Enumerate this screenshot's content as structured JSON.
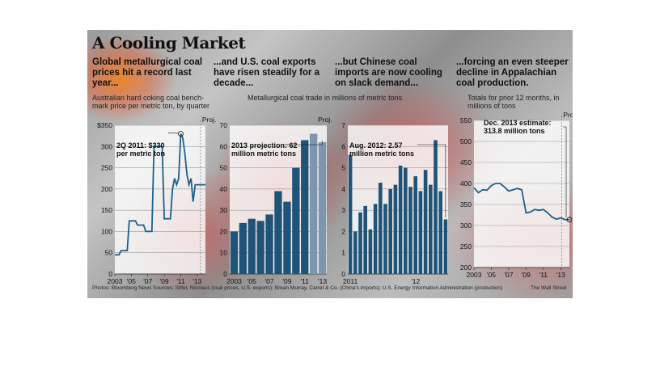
{
  "title": "A Cooling Market",
  "headlines": [
    "Global metallurgical coal prices hit a record last year...",
    "...and U.S. coal exports have risen steadily for a decade...",
    "...but Chinese coal imports are now cooling on slack demand...",
    "...forcing an even steeper decline in Appalachian coal production."
  ],
  "subheads": {
    "prices": "Australian hard coking coal bench-mark price per metric ton, by quarter",
    "shared": "Metallurgical coal trade in millions of metric tons",
    "production": "Totals for prior 12 months, in millions of tons"
  },
  "footer": {
    "credits": "Photos: Bloomberg News     Sources: Stifel, Nicolaus (coal prices, U.S. exports); Brean Murray, Carret & Co. (China's imports); U.S. Energy Information Administration (production)",
    "publisher": "The Wall Street"
  },
  "colors": {
    "line": "#1f5f88",
    "bar": "#1f5478",
    "projection_bar": "#7d95ad",
    "panel": "#ffffff"
  },
  "chart_data": [
    {
      "type": "line",
      "id": "prices",
      "y_ticks": [
        "$350",
        "300",
        "250",
        "200",
        "150",
        "100",
        "50",
        "0"
      ],
      "ylim": [
        0,
        350
      ],
      "x_ticks": [
        "2003",
        "'05",
        "'07",
        "'09",
        "'11",
        "'13"
      ],
      "x_tick_values": [
        2003,
        2005,
        2007,
        2009,
        2011,
        2013
      ],
      "xlim": [
        2003,
        2014
      ],
      "projection_label": "Proj.",
      "projection_start": 2013.4,
      "annotation": "2Q 2011: $330 per metric ton",
      "x": [
        2003,
        2003.5,
        2003.75,
        2004,
        2004.5,
        2004.75,
        2005,
        2005.5,
        2005.75,
        2006,
        2006.5,
        2006.75,
        2007,
        2007.5,
        2007.75,
        2008,
        2008.5,
        2008.75,
        2009,
        2009.5,
        2009.75,
        2010,
        2010.25,
        2010.5,
        2010.75,
        2011,
        2011.25,
        2011.5,
        2011.75,
        2012,
        2012.25,
        2012.5,
        2012.75,
        2013,
        2013.25,
        2013.5,
        2013.75,
        2014
      ],
      "y": [
        45,
        45,
        55,
        55,
        55,
        125,
        125,
        125,
        115,
        115,
        115,
        100,
        100,
        100,
        300,
        300,
        300,
        300,
        130,
        130,
        130,
        200,
        225,
        210,
        225,
        330,
        320,
        285,
        235,
        210,
        225,
        170,
        210,
        210,
        210,
        210,
        210,
        210
      ]
    },
    {
      "type": "bar",
      "id": "us_exports",
      "y_ticks": [
        "70",
        "60",
        "50",
        "40",
        "30",
        "20",
        "10",
        "0"
      ],
      "ylim": [
        0,
        70
      ],
      "x_ticks": [
        "2003",
        "'05",
        "'07",
        "'09",
        "'11",
        "'13"
      ],
      "categories": [
        "2003",
        "2004",
        "2005",
        "2006",
        "2007",
        "2008",
        "2009",
        "2010",
        "2011",
        "2012",
        "2013"
      ],
      "values": [
        20,
        24,
        26,
        25,
        28,
        39,
        34,
        50,
        63,
        66,
        62
      ],
      "projected": [
        false,
        false,
        false,
        false,
        false,
        false,
        false,
        false,
        false,
        true,
        true
      ],
      "projection_label": "Proj.",
      "annotation": "2013 projection: 62 million metric tons"
    },
    {
      "type": "bar",
      "id": "china_imports",
      "y_ticks": [
        "7",
        "6",
        "5",
        "4",
        "3",
        "2",
        "1",
        "0"
      ],
      "ylim": [
        0,
        7
      ],
      "x_ticks": [
        "2011",
        "'12"
      ],
      "x_tick_index": [
        0,
        13
      ],
      "values": [
        5.6,
        2.0,
        2.9,
        3.2,
        2.1,
        3.3,
        4.3,
        3.3,
        4.0,
        4.2,
        5.1,
        5.0,
        4.1,
        4.6,
        3.9,
        4.9,
        4.2,
        6.3,
        3.9,
        2.57
      ],
      "annotation": "Aug. 2012: 2.57 million metric tons"
    },
    {
      "type": "line",
      "id": "appalachian_production",
      "y_ticks": [
        "550",
        "500",
        "450",
        "400",
        "350",
        "300",
        "250",
        "200"
      ],
      "ylim": [
        200,
        550
      ],
      "x_ticks": [
        "2003",
        "'05",
        "'07",
        "'09",
        "'11",
        "'13"
      ],
      "x_tick_values": [
        2003,
        2005,
        2007,
        2009,
        2011,
        2013
      ],
      "xlim": [
        2003,
        2014
      ],
      "projection_label": "Proj.",
      "projection_start": 2013.1,
      "annotation": "Dec. 2013 estimate: 313.8 million tons",
      "x": [
        2003,
        2003.5,
        2004,
        2004.5,
        2005,
        2005.5,
        2006,
        2006.5,
        2007,
        2007.5,
        2008,
        2008.5,
        2009,
        2009.5,
        2010,
        2010.5,
        2011,
        2011.5,
        2012,
        2012.5,
        2013,
        2013.5,
        2014
      ],
      "y": [
        390,
        378,
        385,
        384,
        395,
        400,
        400,
        392,
        382,
        385,
        388,
        385,
        330,
        332,
        338,
        336,
        338,
        330,
        320,
        315,
        318,
        314,
        313.8
      ]
    }
  ]
}
